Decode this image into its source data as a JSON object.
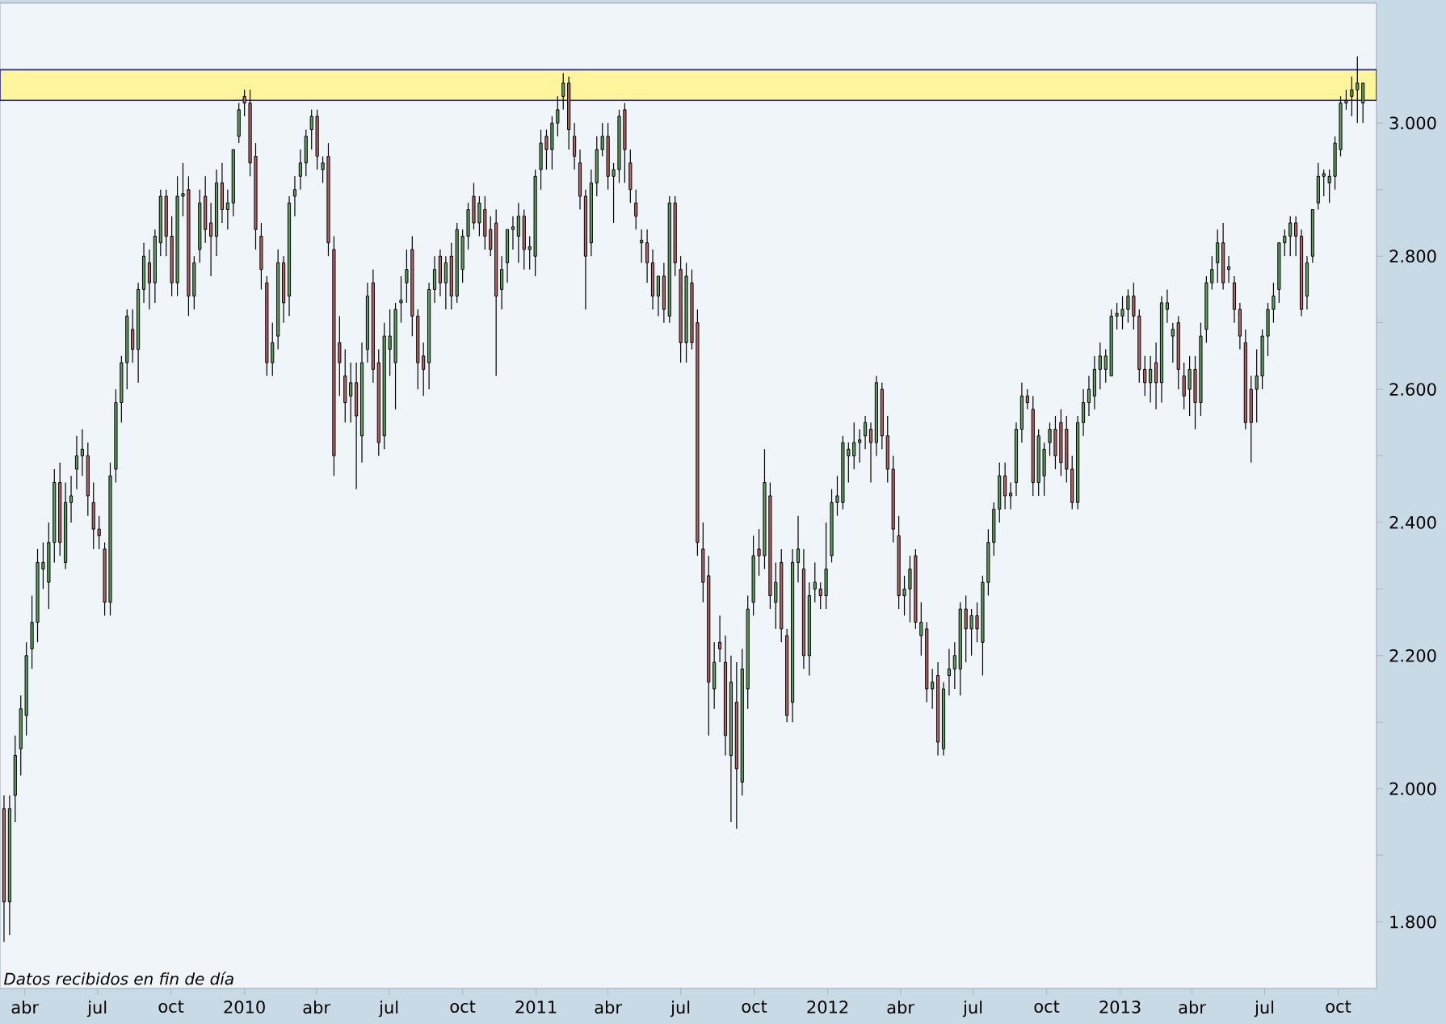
{
  "chart_data": {
    "type": "candlestick",
    "annotations": [
      "Datos recibidos en fin de día"
    ],
    "xlim": [
      "2009-03-01",
      "2013-11-18"
    ],
    "ylim": [
      1.7,
      3.18
    ],
    "xticks": [
      {
        "value": "2009-04-01",
        "label": "abr"
      },
      {
        "value": "2009-07-01",
        "label": "jul"
      },
      {
        "value": "2009-10-01",
        "label": "oct"
      },
      {
        "value": "2010-01-01",
        "label": "2010"
      },
      {
        "value": "2010-04-01",
        "label": "abr"
      },
      {
        "value": "2010-07-01",
        "label": "jul"
      },
      {
        "value": "2010-10-01",
        "label": "oct"
      },
      {
        "value": "2011-01-01",
        "label": "2011"
      },
      {
        "value": "2011-04-01",
        "label": "abr"
      },
      {
        "value": "2011-07-01",
        "label": "jul"
      },
      {
        "value": "2011-10-01",
        "label": "oct"
      },
      {
        "value": "2012-01-01",
        "label": "2012"
      },
      {
        "value": "2012-04-01",
        "label": "abr"
      },
      {
        "value": "2012-07-01",
        "label": "jul"
      },
      {
        "value": "2012-10-01",
        "label": "oct"
      },
      {
        "value": "2013-01-01",
        "label": "2013"
      },
      {
        "value": "2013-04-01",
        "label": "abr"
      },
      {
        "value": "2013-07-01",
        "label": "jul"
      },
      {
        "value": "2013-10-01",
        "label": "oct"
      }
    ],
    "yticks": [
      {
        "value": 1.8,
        "label": "1.800"
      },
      {
        "value": 1.9,
        "label": null
      },
      {
        "value": 2.0,
        "label": "2.000"
      },
      {
        "value": 2.1,
        "label": null
      },
      {
        "value": 2.2,
        "label": "2.200"
      },
      {
        "value": 2.3,
        "label": null
      },
      {
        "value": 2.4,
        "label": "2.400"
      },
      {
        "value": 2.5,
        "label": null
      },
      {
        "value": 2.6,
        "label": "2.600"
      },
      {
        "value": 2.7,
        "label": null
      },
      {
        "value": 2.8,
        "label": "2.800"
      },
      {
        "value": 2.9,
        "label": null
      },
      {
        "value": 3.0,
        "label": "3.000"
      }
    ],
    "bands": [
      {
        "axis": "y",
        "from": 3.034,
        "to": 3.08,
        "color": "#fff59d"
      }
    ],
    "x": [
      "2009-03-06",
      "2009-03-13",
      "2009-03-20",
      "2009-03-27",
      "2009-04-03",
      "2009-04-10",
      "2009-04-17",
      "2009-04-24",
      "2009-05-01",
      "2009-05-08",
      "2009-05-15",
      "2009-05-22",
      "2009-05-29",
      "2009-06-05",
      "2009-06-12",
      "2009-06-19",
      "2009-06-26",
      "2009-07-03",
      "2009-07-10",
      "2009-07-17",
      "2009-07-24",
      "2009-07-31",
      "2009-08-07",
      "2009-08-14",
      "2009-08-21",
      "2009-08-28",
      "2009-09-04",
      "2009-09-11",
      "2009-09-18",
      "2009-09-25",
      "2009-10-02",
      "2009-10-09",
      "2009-10-16",
      "2009-10-23",
      "2009-10-30",
      "2009-11-06",
      "2009-11-13",
      "2009-11-20",
      "2009-11-27",
      "2009-12-04",
      "2009-12-11",
      "2009-12-18",
      "2009-12-25",
      "2010-01-01",
      "2010-01-08",
      "2010-01-15",
      "2010-01-22",
      "2010-01-29",
      "2010-02-05",
      "2010-02-12",
      "2010-02-19",
      "2010-02-26",
      "2010-03-05",
      "2010-03-12",
      "2010-03-19",
      "2010-03-26",
      "2010-04-02",
      "2010-04-09",
      "2010-04-16",
      "2010-04-23",
      "2010-04-30",
      "2010-05-07",
      "2010-05-14",
      "2010-05-21",
      "2010-05-28",
      "2010-06-04",
      "2010-06-11",
      "2010-06-18",
      "2010-06-25",
      "2010-07-02",
      "2010-07-09",
      "2010-07-16",
      "2010-07-23",
      "2010-07-30",
      "2010-08-06",
      "2010-08-13",
      "2010-08-20",
      "2010-08-27",
      "2010-09-03",
      "2010-09-10",
      "2010-09-17",
      "2010-09-24",
      "2010-10-01",
      "2010-10-08",
      "2010-10-15",
      "2010-10-22",
      "2010-10-29",
      "2010-11-05",
      "2010-11-12",
      "2010-11-19",
      "2010-11-26",
      "2010-12-03",
      "2010-12-10",
      "2010-12-17",
      "2010-12-24",
      "2010-12-31",
      "2011-01-07",
      "2011-01-14",
      "2011-01-21",
      "2011-01-28",
      "2011-02-04",
      "2011-02-11",
      "2011-02-18",
      "2011-02-25",
      "2011-03-04",
      "2011-03-11",
      "2011-03-18",
      "2011-03-25",
      "2011-04-01",
      "2011-04-08",
      "2011-04-15",
      "2011-04-22",
      "2011-04-29",
      "2011-05-06",
      "2011-05-13",
      "2011-05-20",
      "2011-05-27",
      "2011-06-03",
      "2011-06-10",
      "2011-06-17",
      "2011-06-24",
      "2011-07-01",
      "2011-07-08",
      "2011-07-15",
      "2011-07-22",
      "2011-07-29",
      "2011-08-05",
      "2011-08-12",
      "2011-08-19",
      "2011-08-26",
      "2011-09-02",
      "2011-09-09",
      "2011-09-16",
      "2011-09-23",
      "2011-09-30",
      "2011-10-07",
      "2011-10-14",
      "2011-10-21",
      "2011-10-28",
      "2011-11-04",
      "2011-11-11",
      "2011-11-18",
      "2011-11-25",
      "2011-12-02",
      "2011-12-09",
      "2011-12-16",
      "2011-12-23",
      "2011-12-30",
      "2012-01-06",
      "2012-01-13",
      "2012-01-20",
      "2012-01-27",
      "2012-02-03",
      "2012-02-10",
      "2012-02-17",
      "2012-02-24",
      "2012-03-02",
      "2012-03-09",
      "2012-03-16",
      "2012-03-23",
      "2012-03-30",
      "2012-04-06",
      "2012-04-13",
      "2012-04-20",
      "2012-04-27",
      "2012-05-04",
      "2012-05-11",
      "2012-05-18",
      "2012-05-25",
      "2012-06-01",
      "2012-06-08",
      "2012-06-15",
      "2012-06-22",
      "2012-06-29",
      "2012-07-06",
      "2012-07-13",
      "2012-07-20",
      "2012-07-27",
      "2012-08-03",
      "2012-08-10",
      "2012-08-17",
      "2012-08-24",
      "2012-08-31",
      "2012-09-07",
      "2012-09-14",
      "2012-09-21",
      "2012-09-28",
      "2012-10-05",
      "2012-10-12",
      "2012-10-19",
      "2012-10-26",
      "2012-11-02",
      "2012-11-09",
      "2012-11-16",
      "2012-11-23",
      "2012-11-30",
      "2012-12-07",
      "2012-12-14",
      "2012-12-21",
      "2012-12-28",
      "2013-01-04",
      "2013-01-11",
      "2013-01-18",
      "2013-01-25",
      "2013-02-01",
      "2013-02-08",
      "2013-02-15",
      "2013-02-22",
      "2013-03-01",
      "2013-03-08",
      "2013-03-15",
      "2013-03-22",
      "2013-03-29",
      "2013-04-05",
      "2013-04-12",
      "2013-04-19",
      "2013-04-26",
      "2013-05-03",
      "2013-05-10",
      "2013-05-17",
      "2013-05-24",
      "2013-05-31",
      "2013-06-07",
      "2013-06-14",
      "2013-06-21",
      "2013-06-28",
      "2013-07-05",
      "2013-07-12",
      "2013-07-19",
      "2013-07-26",
      "2013-08-02",
      "2013-08-09",
      "2013-08-16",
      "2013-08-23",
      "2013-08-30",
      "2013-09-06",
      "2013-09-13",
      "2013-09-20",
      "2013-09-27",
      "2013-10-04",
      "2013-10-11",
      "2013-10-18",
      "2013-10-25",
      "2013-11-01"
    ],
    "ohlc": [
      [
        1.97,
        1.99,
        1.77,
        1.83
      ],
      [
        1.83,
        1.99,
        1.78,
        1.97
      ],
      [
        1.99,
        2.08,
        1.95,
        2.05
      ],
      [
        2.06,
        2.14,
        2.02,
        2.12
      ],
      [
        2.11,
        2.22,
        2.08,
        2.2
      ],
      [
        2.21,
        2.29,
        2.18,
        2.25
      ],
      [
        2.25,
        2.36,
        2.22,
        2.34
      ],
      [
        2.33,
        2.37,
        2.3,
        2.34
      ],
      [
        2.31,
        2.4,
        2.27,
        2.37
      ],
      [
        2.37,
        2.48,
        2.34,
        2.46
      ],
      [
        2.46,
        2.49,
        2.35,
        2.37
      ],
      [
        2.34,
        2.46,
        2.33,
        2.43
      ],
      [
        2.43,
        2.47,
        2.4,
        2.44
      ],
      [
        2.48,
        2.53,
        2.45,
        2.5
      ],
      [
        2.5,
        2.54,
        2.47,
        2.51
      ],
      [
        2.5,
        2.52,
        2.41,
        2.44
      ],
      [
        2.43,
        2.46,
        2.36,
        2.39
      ],
      [
        2.39,
        2.41,
        2.36,
        2.38
      ],
      [
        2.36,
        2.37,
        2.26,
        2.28
      ],
      [
        2.28,
        2.49,
        2.26,
        2.47
      ],
      [
        2.48,
        2.6,
        2.46,
        2.58
      ],
      [
        2.58,
        2.65,
        2.55,
        2.64
      ],
      [
        2.64,
        2.72,
        2.6,
        2.71
      ],
      [
        2.69,
        2.72,
        2.64,
        2.66
      ],
      [
        2.66,
        2.76,
        2.61,
        2.75
      ],
      [
        2.75,
        2.82,
        2.73,
        2.8
      ],
      [
        2.79,
        2.81,
        2.72,
        2.76
      ],
      [
        2.76,
        2.84,
        2.73,
        2.83
      ],
      [
        2.82,
        2.9,
        2.8,
        2.89
      ],
      [
        2.89,
        2.9,
        2.8,
        2.83
      ],
      [
        2.83,
        2.86,
        2.74,
        2.76
      ],
      [
        2.76,
        2.92,
        2.74,
        2.89
      ],
      [
        2.89,
        2.94,
        2.86,
        2.89
      ],
      [
        2.9,
        2.92,
        2.71,
        2.74
      ],
      [
        2.74,
        2.8,
        2.72,
        2.79
      ],
      [
        2.81,
        2.9,
        2.79,
        2.88
      ],
      [
        2.89,
        2.92,
        2.82,
        2.84
      ],
      [
        2.85,
        2.88,
        2.77,
        2.83
      ],
      [
        2.83,
        2.93,
        2.8,
        2.91
      ],
      [
        2.91,
        2.94,
        2.85,
        2.87
      ],
      [
        2.87,
        2.9,
        2.84,
        2.88
      ],
      [
        2.88,
        2.96,
        2.86,
        2.96
      ],
      [
        2.98,
        3.03,
        2.97,
        3.02
      ],
      [
        3.04,
        3.05,
        3.01,
        3.03
      ],
      [
        3.03,
        3.05,
        2.92,
        2.94
      ],
      [
        2.95,
        2.97,
        2.81,
        2.84
      ],
      [
        2.83,
        2.85,
        2.75,
        2.78
      ],
      [
        2.76,
        2.77,
        2.62,
        2.64
      ],
      [
        2.64,
        2.7,
        2.62,
        2.67
      ],
      [
        2.68,
        2.81,
        2.66,
        2.79
      ],
      [
        2.79,
        2.8,
        2.7,
        2.73
      ],
      [
        2.74,
        2.89,
        2.71,
        2.88
      ],
      [
        2.89,
        2.92,
        2.86,
        2.9
      ],
      [
        2.92,
        2.96,
        2.9,
        2.94
      ],
      [
        2.94,
        2.99,
        2.92,
        2.98
      ],
      [
        2.99,
        3.02,
        2.96,
        3.01
      ],
      [
        3.01,
        3.02,
        2.93,
        2.95
      ],
      [
        2.93,
        2.95,
        2.91,
        2.94
      ],
      [
        2.95,
        2.97,
        2.8,
        2.82
      ],
      [
        2.81,
        2.83,
        2.47,
        2.5
      ],
      [
        2.67,
        2.71,
        2.59,
        2.64
      ],
      [
        2.62,
        2.66,
        2.55,
        2.58
      ],
      [
        2.59,
        2.64,
        2.55,
        2.61
      ],
      [
        2.61,
        2.64,
        2.45,
        2.56
      ],
      [
        2.53,
        2.67,
        2.49,
        2.64
      ],
      [
        2.66,
        2.76,
        2.64,
        2.74
      ],
      [
        2.76,
        2.78,
        2.61,
        2.63
      ],
      [
        2.64,
        2.66,
        2.5,
        2.52
      ],
      [
        2.53,
        2.7,
        2.51,
        2.68
      ],
      [
        2.66,
        2.72,
        2.62,
        2.68
      ],
      [
        2.64,
        2.73,
        2.57,
        2.72
      ],
      [
        2.73,
        2.77,
        2.7,
        2.73
      ],
      [
        2.76,
        2.81,
        2.73,
        2.78
      ],
      [
        2.81,
        2.83,
        2.68,
        2.71
      ],
      [
        2.71,
        2.72,
        2.6,
        2.64
      ],
      [
        2.65,
        2.67,
        2.59,
        2.63
      ],
      [
        2.64,
        2.76,
        2.6,
        2.75
      ],
      [
        2.75,
        2.8,
        2.73,
        2.78
      ],
      [
        2.8,
        2.81,
        2.74,
        2.76
      ],
      [
        2.76,
        2.8,
        2.72,
        2.79
      ],
      [
        2.8,
        2.82,
        2.72,
        2.74
      ],
      [
        2.74,
        2.85,
        2.73,
        2.84
      ],
      [
        2.78,
        2.84,
        2.76,
        2.83
      ],
      [
        2.83,
        2.88,
        2.81,
        2.87
      ],
      [
        2.89,
        2.91,
        2.84,
        2.85
      ],
      [
        2.85,
        2.89,
        2.83,
        2.88
      ],
      [
        2.87,
        2.89,
        2.81,
        2.83
      ],
      [
        2.84,
        2.86,
        2.8,
        2.81
      ],
      [
        2.85,
        2.87,
        2.62,
        2.74
      ],
      [
        2.75,
        2.8,
        2.72,
        2.78
      ],
      [
        2.79,
        2.84,
        2.76,
        2.84
      ],
      [
        2.84,
        2.86,
        2.81,
        2.84
      ],
      [
        2.83,
        2.88,
        2.79,
        2.86
      ],
      [
        2.86,
        2.87,
        2.78,
        2.81
      ],
      [
        2.81,
        2.83,
        2.78,
        2.81
      ],
      [
        2.8,
        2.93,
        2.77,
        2.92
      ],
      [
        2.93,
        2.99,
        2.9,
        2.97
      ],
      [
        2.98,
        2.99,
        2.93,
        2.96
      ],
      [
        2.96,
        3.01,
        2.93,
        3.0
      ],
      [
        3.0,
        3.04,
        2.98,
        3.02
      ],
      [
        3.04,
        3.075,
        3.02,
        3.06
      ],
      [
        3.06,
        3.07,
        2.96,
        2.99
      ],
      [
        2.98,
        3.0,
        2.93,
        2.95
      ],
      [
        2.94,
        2.96,
        2.87,
        2.89
      ],
      [
        2.89,
        2.9,
        2.72,
        2.8
      ],
      [
        2.82,
        2.93,
        2.8,
        2.91
      ],
      [
        2.91,
        2.98,
        2.89,
        2.96
      ],
      [
        2.96,
        3.0,
        2.95,
        2.98
      ],
      [
        2.98,
        3.0,
        2.9,
        2.92
      ],
      [
        2.92,
        2.94,
        2.85,
        2.93
      ],
      [
        2.93,
        3.02,
        2.91,
        3.01
      ],
      [
        3.02,
        3.03,
        2.91,
        2.96
      ],
      [
        2.94,
        2.96,
        2.88,
        2.9
      ],
      [
        2.88,
        2.9,
        2.84,
        2.86
      ],
      [
        2.82,
        2.84,
        2.79,
        2.82
      ],
      [
        2.82,
        2.84,
        2.76,
        2.79
      ],
      [
        2.79,
        2.81,
        2.72,
        2.74
      ],
      [
        2.74,
        2.77,
        2.71,
        2.77
      ],
      [
        2.77,
        2.79,
        2.7,
        2.72
      ],
      [
        2.71,
        2.89,
        2.7,
        2.88
      ],
      [
        2.88,
        2.89,
        2.77,
        2.79
      ],
      [
        2.78,
        2.8,
        2.64,
        2.67
      ],
      [
        2.67,
        2.79,
        2.64,
        2.77
      ],
      [
        2.76,
        2.78,
        2.66,
        2.67
      ],
      [
        2.7,
        2.72,
        2.35,
        2.37
      ],
      [
        2.36,
        2.4,
        2.28,
        2.31
      ],
      [
        2.32,
        2.35,
        2.08,
        2.16
      ],
      [
        2.15,
        2.22,
        2.12,
        2.19
      ],
      [
        2.22,
        2.26,
        2.19,
        2.21
      ],
      [
        2.19,
        2.23,
        2.05,
        2.08
      ],
      [
        2.05,
        2.2,
        1.95,
        2.16
      ],
      [
        2.13,
        2.19,
        1.94,
        2.03
      ],
      [
        2.01,
        2.21,
        1.99,
        2.18
      ],
      [
        2.15,
        2.29,
        2.12,
        2.27
      ],
      [
        2.28,
        2.38,
        2.26,
        2.35
      ],
      [
        2.36,
        2.39,
        2.32,
        2.35
      ],
      [
        2.35,
        2.51,
        2.33,
        2.46
      ],
      [
        2.44,
        2.46,
        2.27,
        2.29
      ],
      [
        2.28,
        2.34,
        2.24,
        2.31
      ],
      [
        2.34,
        2.36,
        2.22,
        2.24
      ],
      [
        2.23,
        2.24,
        2.1,
        2.11
      ],
      [
        2.13,
        2.36,
        2.1,
        2.34
      ],
      [
        2.34,
        2.41,
        2.31,
        2.36
      ],
      [
        2.33,
        2.36,
        2.18,
        2.2
      ],
      [
        2.2,
        2.31,
        2.17,
        2.29
      ],
      [
        2.3,
        2.34,
        2.28,
        2.31
      ],
      [
        2.3,
        2.31,
        2.27,
        2.29
      ],
      [
        2.29,
        2.4,
        2.27,
        2.33
      ],
      [
        2.35,
        2.45,
        2.34,
        2.43
      ],
      [
        2.43,
        2.47,
        2.41,
        2.44
      ],
      [
        2.43,
        2.53,
        2.42,
        2.52
      ],
      [
        2.5,
        2.52,
        2.46,
        2.51
      ],
      [
        2.5,
        2.55,
        2.48,
        2.52
      ],
      [
        2.52,
        2.54,
        2.49,
        2.52
      ],
      [
        2.53,
        2.56,
        2.51,
        2.55
      ],
      [
        2.54,
        2.55,
        2.46,
        2.52
      ],
      [
        2.52,
        2.62,
        2.5,
        2.61
      ],
      [
        2.6,
        2.61,
        2.51,
        2.53
      ],
      [
        2.53,
        2.56,
        2.46,
        2.48
      ],
      [
        2.48,
        2.5,
        2.37,
        2.39
      ],
      [
        2.38,
        2.41,
        2.27,
        2.29
      ],
      [
        2.29,
        2.32,
        2.26,
        2.3
      ],
      [
        2.3,
        2.35,
        2.25,
        2.33
      ],
      [
        2.35,
        2.36,
        2.24,
        2.25
      ],
      [
        2.23,
        2.28,
        2.2,
        2.25
      ],
      [
        2.24,
        2.25,
        2.13,
        2.15
      ],
      [
        2.15,
        2.18,
        2.12,
        2.16
      ],
      [
        2.17,
        2.19,
        2.05,
        2.07
      ],
      [
        2.06,
        2.16,
        2.05,
        2.15
      ],
      [
        2.17,
        2.21,
        2.14,
        2.18
      ],
      [
        2.18,
        2.22,
        2.15,
        2.2
      ],
      [
        2.18,
        2.28,
        2.14,
        2.27
      ],
      [
        2.27,
        2.29,
        2.19,
        2.24
      ],
      [
        2.24,
        2.27,
        2.2,
        2.26
      ],
      [
        2.26,
        2.28,
        2.22,
        2.24
      ],
      [
        2.22,
        2.32,
        2.17,
        2.31
      ],
      [
        2.31,
        2.39,
        2.29,
        2.37
      ],
      [
        2.37,
        2.43,
        2.35,
        2.42
      ],
      [
        2.42,
        2.49,
        2.4,
        2.47
      ],
      [
        2.47,
        2.49,
        2.42,
        2.44
      ],
      [
        2.44,
        2.46,
        2.42,
        2.44
      ],
      [
        2.46,
        2.55,
        2.44,
        2.54
      ],
      [
        2.54,
        2.61,
        2.52,
        2.59
      ],
      [
        2.59,
        2.6,
        2.57,
        2.58
      ],
      [
        2.57,
        2.59,
        2.44,
        2.46
      ],
      [
        2.46,
        2.54,
        2.44,
        2.53
      ],
      [
        2.47,
        2.52,
        2.44,
        2.51
      ],
      [
        2.52,
        2.55,
        2.5,
        2.54
      ],
      [
        2.54,
        2.56,
        2.48,
        2.5
      ],
      [
        2.55,
        2.57,
        2.47,
        2.49
      ],
      [
        2.54,
        2.56,
        2.46,
        2.48
      ],
      [
        2.48,
        2.5,
        2.42,
        2.43
      ],
      [
        2.43,
        2.56,
        2.42,
        2.55
      ],
      [
        2.55,
        2.6,
        2.53,
        2.58
      ],
      [
        2.58,
        2.62,
        2.56,
        2.6
      ],
      [
        2.59,
        2.65,
        2.57,
        2.63
      ],
      [
        2.63,
        2.67,
        2.6,
        2.65
      ],
      [
        2.63,
        2.66,
        2.61,
        2.65
      ],
      [
        2.62,
        2.72,
        2.62,
        2.71
      ],
      [
        2.71,
        2.73,
        2.69,
        2.71
      ],
      [
        2.71,
        2.74,
        2.69,
        2.72
      ],
      [
        2.72,
        2.75,
        2.7,
        2.74
      ],
      [
        2.74,
        2.76,
        2.69,
        2.71
      ],
      [
        2.71,
        2.72,
        2.61,
        2.63
      ],
      [
        2.63,
        2.65,
        2.59,
        2.61
      ],
      [
        2.61,
        2.65,
        2.58,
        2.63
      ],
      [
        2.64,
        2.67,
        2.57,
        2.61
      ],
      [
        2.61,
        2.74,
        2.58,
        2.73
      ],
      [
        2.72,
        2.75,
        2.7,
        2.73
      ],
      [
        2.68,
        2.7,
        2.64,
        2.69
      ],
      [
        2.7,
        2.71,
        2.6,
        2.63
      ],
      [
        2.62,
        2.64,
        2.57,
        2.59
      ],
      [
        2.6,
        2.65,
        2.56,
        2.63
      ],
      [
        2.63,
        2.65,
        2.54,
        2.58
      ],
      [
        2.58,
        2.7,
        2.56,
        2.68
      ],
      [
        2.69,
        2.77,
        2.67,
        2.76
      ],
      [
        2.76,
        2.8,
        2.75,
        2.78
      ],
      [
        2.79,
        2.84,
        2.76,
        2.82
      ],
      [
        2.82,
        2.85,
        2.75,
        2.76
      ],
      [
        2.78,
        2.8,
        2.76,
        2.78
      ],
      [
        2.76,
        2.77,
        2.7,
        2.72
      ],
      [
        2.72,
        2.73,
        2.66,
        2.68
      ],
      [
        2.67,
        2.69,
        2.54,
        2.55
      ],
      [
        2.6,
        2.62,
        2.49,
        2.55
      ],
      [
        2.6,
        2.66,
        2.55,
        2.62
      ],
      [
        2.62,
        2.69,
        2.6,
        2.68
      ],
      [
        2.68,
        2.73,
        2.65,
        2.72
      ],
      [
        2.72,
        2.76,
        2.7,
        2.74
      ],
      [
        2.75,
        2.82,
        2.73,
        2.82
      ],
      [
        2.82,
        2.84,
        2.8,
        2.83
      ],
      [
        2.83,
        2.86,
        2.8,
        2.85
      ],
      [
        2.85,
        2.86,
        2.8,
        2.83
      ],
      [
        2.83,
        2.84,
        2.71,
        2.72
      ],
      [
        2.74,
        2.8,
        2.72,
        2.79
      ],
      [
        2.8,
        2.87,
        2.79,
        2.87
      ],
      [
        2.88,
        2.94,
        2.87,
        2.92
      ],
      [
        2.92,
        2.93,
        2.89,
        2.92
      ],
      [
        2.91,
        2.93,
        2.88,
        2.92
      ],
      [
        2.92,
        2.98,
        2.9,
        2.97
      ],
      [
        2.96,
        3.04,
        2.95,
        3.03
      ],
      [
        3.03,
        3.05,
        3.02,
        3.03
      ],
      [
        3.04,
        3.07,
        3.01,
        3.05
      ],
      [
        3.05,
        3.1,
        3.0,
        3.06
      ],
      [
        3.03,
        3.06,
        3.0,
        3.06
      ]
    ]
  }
}
